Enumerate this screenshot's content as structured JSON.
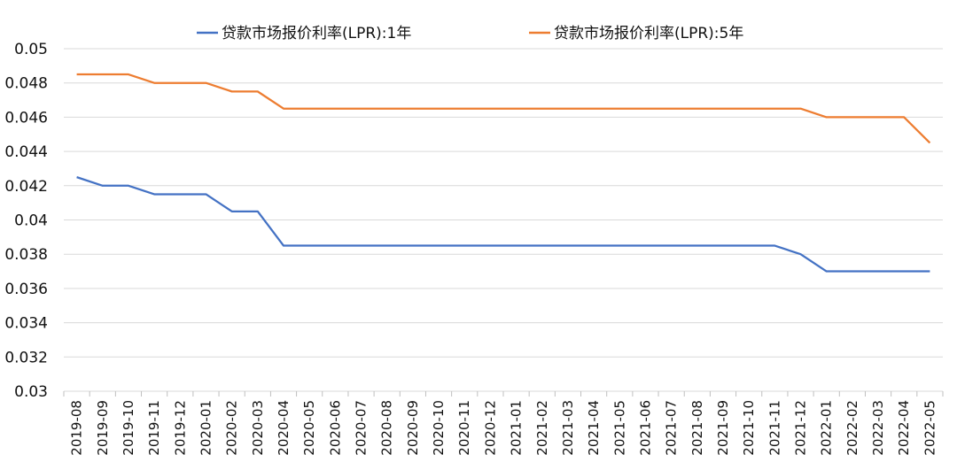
{
  "chart_data": {
    "type": "line",
    "categories": [
      "2019-08",
      "2019-09",
      "2019-10",
      "2019-11",
      "2019-12",
      "2020-01",
      "2020-02",
      "2020-03",
      "2020-04",
      "2020-05",
      "2020-06",
      "2020-07",
      "2020-08",
      "2020-09",
      "2020-10",
      "2020-11",
      "2020-12",
      "2021-01",
      "2021-02",
      "2021-03",
      "2021-04",
      "2021-05",
      "2021-06",
      "2021-07",
      "2021-08",
      "2021-09",
      "2021-10",
      "2021-11",
      "2021-12",
      "2022-01",
      "2022-02",
      "2022-03",
      "2022-04",
      "2022-05"
    ],
    "series": [
      {
        "name": "贷款市场报价利率(LPR):1年",
        "color": "#4472C4",
        "values": [
          0.0425,
          0.042,
          0.042,
          0.0415,
          0.0415,
          0.0415,
          0.0405,
          0.0405,
          0.0385,
          0.0385,
          0.0385,
          0.0385,
          0.0385,
          0.0385,
          0.0385,
          0.0385,
          0.0385,
          0.0385,
          0.0385,
          0.0385,
          0.0385,
          0.0385,
          0.0385,
          0.0385,
          0.0385,
          0.0385,
          0.0385,
          0.0385,
          0.038,
          0.037,
          0.037,
          0.037,
          0.037,
          0.037
        ]
      },
      {
        "name": "贷款市场报价利率(LPR):5年",
        "color": "#ED7D31",
        "values": [
          0.0485,
          0.0485,
          0.0485,
          0.048,
          0.048,
          0.048,
          0.0475,
          0.0475,
          0.0465,
          0.0465,
          0.0465,
          0.0465,
          0.0465,
          0.0465,
          0.0465,
          0.0465,
          0.0465,
          0.0465,
          0.0465,
          0.0465,
          0.0465,
          0.0465,
          0.0465,
          0.0465,
          0.0465,
          0.0465,
          0.0465,
          0.0465,
          0.0465,
          0.046,
          0.046,
          0.046,
          0.046,
          0.0445
        ]
      }
    ],
    "yticks": [
      "0.03",
      "0.032",
      "0.034",
      "0.036",
      "0.038",
      "0.04",
      "0.042",
      "0.044",
      "0.046",
      "0.048",
      "0.05"
    ],
    "ylim": [
      0.03,
      0.05
    ],
    "grid": true,
    "legend": "top-center",
    "title": "",
    "xlabel": "",
    "ylabel": ""
  }
}
